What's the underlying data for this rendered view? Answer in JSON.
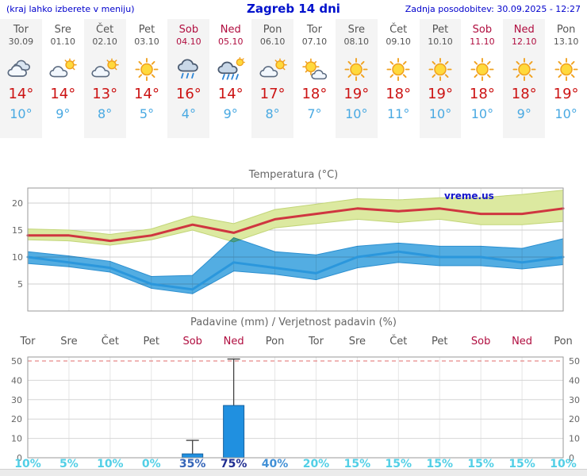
{
  "header": {
    "menu_hint": "(kraj lahko izberete v meniju)",
    "title": "Zagreb 14 dni",
    "updated": "Zadnja posodobitev: 30.09.2025 - 12:27"
  },
  "colors": {
    "accent_blue": "#0000cc",
    "high_red": "#cc1414",
    "low_blue": "#49a9e2",
    "weekend_red": "#b00d3f",
    "weekday_gray": "#555555"
  },
  "days": [
    {
      "name": "Tor",
      "date": "30.09",
      "weekend": false,
      "icon": "cloudy-icon",
      "high": "14°",
      "low": "10°"
    },
    {
      "name": "Sre",
      "date": "01.10",
      "weekend": false,
      "icon": "partly-cloudy-icon",
      "high": "14°",
      "low": "9°"
    },
    {
      "name": "Čet",
      "date": "02.10",
      "weekend": false,
      "icon": "partly-cloudy-icon",
      "high": "13°",
      "low": "8°"
    },
    {
      "name": "Pet",
      "date": "03.10",
      "weekend": false,
      "icon": "sunny-icon",
      "high": "14°",
      "low": "5°"
    },
    {
      "name": "Sob",
      "date": "04.10",
      "weekend": true,
      "icon": "rain-icon",
      "high": "16°",
      "low": "4°"
    },
    {
      "name": "Ned",
      "date": "05.10",
      "weekend": true,
      "icon": "rain-sun-icon",
      "high": "14°",
      "low": "9°"
    },
    {
      "name": "Pon",
      "date": "06.10",
      "weekend": false,
      "icon": "partly-cloudy-icon",
      "high": "17°",
      "low": "8°"
    },
    {
      "name": "Tor",
      "date": "07.10",
      "weekend": false,
      "icon": "mostly-sunny-icon",
      "high": "18°",
      "low": "7°"
    },
    {
      "name": "Sre",
      "date": "08.10",
      "weekend": false,
      "icon": "sunny-icon",
      "high": "19°",
      "low": "10°"
    },
    {
      "name": "Čet",
      "date": "09.10",
      "weekend": false,
      "icon": "sunny-icon",
      "high": "18°",
      "low": "11°"
    },
    {
      "name": "Pet",
      "date": "10.10",
      "weekend": false,
      "icon": "sunny-icon",
      "high": "19°",
      "low": "10°"
    },
    {
      "name": "Sob",
      "date": "11.10",
      "weekend": true,
      "icon": "sunny-icon",
      "high": "18°",
      "low": "10°"
    },
    {
      "name": "Ned",
      "date": "12.10",
      "weekend": true,
      "icon": "sunny-icon",
      "high": "18°",
      "low": "9°"
    },
    {
      "name": "Pon",
      "date": "13.10",
      "weekend": false,
      "icon": "sunny-icon",
      "high": "19°",
      "low": "10°"
    }
  ],
  "chart_data": [
    {
      "type": "line",
      "title": "Temperatura (°C)",
      "watermark": "vreme.us",
      "x": [
        "Tor",
        "Sre",
        "Čet",
        "Pet",
        "Sob",
        "Ned",
        "Pon",
        "Tor",
        "Sre",
        "Čet",
        "Pet",
        "Sob",
        "Ned",
        "Pon"
      ],
      "ylim": [
        0,
        22.8
      ],
      "yticks": [
        5,
        10,
        15,
        20
      ],
      "grid": true,
      "series": [
        {
          "name": "max-temp",
          "color": "#cf3640",
          "values": [
            14,
            14,
            13,
            14,
            16,
            14.5,
            17,
            18,
            19,
            18.5,
            19,
            18,
            18,
            19
          ]
        },
        {
          "name": "min-temp",
          "color": "#2b97dc",
          "values": [
            10,
            9,
            8,
            5,
            4,
            9,
            8,
            7,
            10,
            11,
            10,
            10,
            9,
            10
          ]
        }
      ],
      "bands": [
        {
          "name": "max-range",
          "fill": "#dce9a0",
          "edge": "#c2d578",
          "upper": [
            15.2,
            15,
            14.2,
            15.2,
            17.6,
            16.2,
            18.8,
            19.8,
            20.8,
            20.6,
            21,
            21,
            21.6,
            22.4
          ],
          "lower": [
            13.2,
            13,
            12.2,
            13.2,
            15,
            12.8,
            15.4,
            16.2,
            17,
            16.4,
            17,
            16,
            16,
            16.6
          ]
        },
        {
          "name": "min-range",
          "fill": "#53ade2",
          "edge": "#2b8fd0",
          "upper": [
            11,
            10.2,
            9.2,
            6.4,
            6.6,
            13.6,
            11,
            10.4,
            12,
            12.6,
            12,
            12,
            11.6,
            13.4
          ],
          "lower": [
            8.8,
            8.2,
            7.2,
            4.2,
            3.2,
            7.4,
            6.8,
            5.8,
            8,
            9,
            8.4,
            8.4,
            7.8,
            8.6
          ]
        }
      ]
    },
    {
      "type": "bar",
      "title": "Padavine (mm) / Verjetnost padavin (%)",
      "categories": [
        "Tor",
        "Sre",
        "Čet",
        "Pet",
        "Sob",
        "Ned",
        "Pon",
        "Tor",
        "Sre",
        "Čet",
        "Pet",
        "Sob",
        "Ned",
        "Pon"
      ],
      "ylim": [
        0,
        52
      ],
      "yticks": [
        0,
        10,
        20,
        30,
        40,
        50
      ],
      "bar_color": "#2090e0",
      "bar_edge": "#17629f",
      "precip_mm": [
        0,
        0,
        0,
        0,
        2,
        27,
        0,
        0,
        0,
        0,
        0,
        0,
        0,
        0
      ],
      "precip_max_mm": [
        0,
        0,
        0,
        0,
        9,
        51,
        0,
        0,
        0,
        0,
        0,
        0,
        0,
        0
      ],
      "probability_pct": [
        "10%",
        "5%",
        "10%",
        "0%",
        "35%",
        "75%",
        "40%",
        "20%",
        "15%",
        "15%",
        "15%",
        "15%",
        "15%",
        "10%"
      ],
      "probability_colors": [
        "#52cfe6",
        "#52cfe6",
        "#52cfe6",
        "#52cfe6",
        "#3565b8",
        "#1f2d91",
        "#4190d6",
        "#52cfe6",
        "#52cfe6",
        "#52cfe6",
        "#52cfe6",
        "#52cfe6",
        "#52cfe6",
        "#52cfe6"
      ]
    }
  ]
}
